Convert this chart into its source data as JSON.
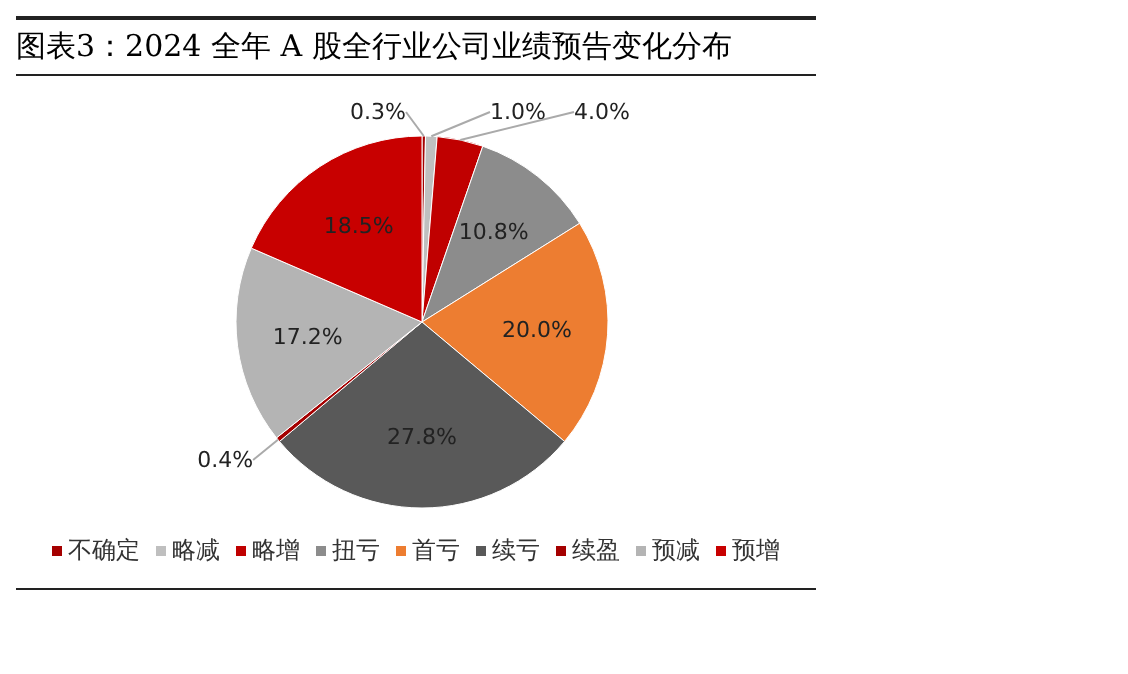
{
  "chart_data": {
    "type": "pie",
    "title": "图表3：2024 全年 A 股全行业公司业绩预告变化分布",
    "categories": [
      "不确定",
      "略减",
      "略增",
      "扭亏",
      "首亏",
      "续亏",
      "续盈",
      "预减",
      "预增"
    ],
    "values": [
      0.3,
      1.0,
      4.0,
      10.8,
      20.0,
      27.8,
      0.4,
      17.2,
      18.5
    ],
    "colors": [
      "#a50000",
      "#bfbfbf",
      "#c00000",
      "#8c8c8c",
      "#ed7d31",
      "#595959",
      "#a50000",
      "#b4b4b4",
      "#c80000"
    ],
    "value_labels": [
      "0.3%",
      "1.0%",
      "4.0%",
      "10.8%",
      "20.0%",
      "27.8%",
      "0.4%",
      "17.2%",
      "18.5%"
    ],
    "legend": "bottom"
  }
}
